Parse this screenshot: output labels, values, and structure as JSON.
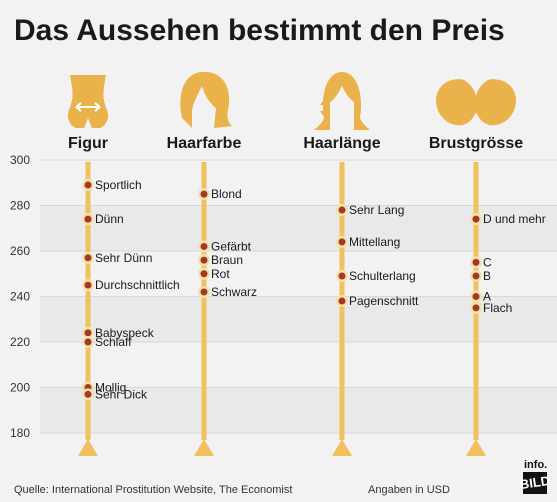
{
  "title": "Das Aussehen bestimmt den Preis",
  "footer": {
    "source": "Quelle: International Prostitution Website, The Economist",
    "unit_note": "Angaben in USD",
    "logo_info": "info.",
    "logo_bild": "BILD"
  },
  "colors": {
    "axis_line": "#f1c15c",
    "marker_fill": "#a23a22",
    "marker_halo": "#f5dfb0",
    "icon": "#e9b24a",
    "band": "#e9e9e9",
    "background": "#f2f2f2"
  },
  "chart_data": {
    "type": "scatter",
    "title": "Das Aussehen bestimmt den Preis",
    "ylim": [
      180,
      300
    ],
    "yticks": [
      180,
      200,
      220,
      240,
      260,
      280,
      300
    ],
    "grid": true,
    "categories": [
      {
        "name": "Figur",
        "icon": "body-icon",
        "points": [
          {
            "label": "Sportlich",
            "value": 289
          },
          {
            "label": "Dünn",
            "value": 274
          },
          {
            "label": "Sehr Dünn",
            "value": 257
          },
          {
            "label": "Durchschnittlich",
            "value": 245
          },
          {
            "label": "Babyspeck",
            "value": 224
          },
          {
            "label": "Schlaff",
            "value": 220
          },
          {
            "label": "Mollig",
            "value": 200
          },
          {
            "label": "Sehr Dick",
            "value": 197
          }
        ]
      },
      {
        "name": "Haarfarbe",
        "icon": "hair-color-icon",
        "points": [
          {
            "label": "Blond",
            "value": 285
          },
          {
            "label": "Gefärbt",
            "value": 262
          },
          {
            "label": "Braun",
            "value": 256
          },
          {
            "label": "Rot",
            "value": 250
          },
          {
            "label": "Schwarz",
            "value": 242
          }
        ]
      },
      {
        "name": "Haarlänge",
        "icon": "hair-length-icon",
        "points": [
          {
            "label": "Sehr Lang",
            "value": 278
          },
          {
            "label": "Mittellang",
            "value": 264
          },
          {
            "label": "Schulterlang",
            "value": 249
          },
          {
            "label": "Pagenschnitt",
            "value": 238
          }
        ]
      },
      {
        "name": "Brustgrösse",
        "icon": "bust-icon",
        "points": [
          {
            "label": "D und mehr",
            "value": 274
          },
          {
            "label": "C",
            "value": 255
          },
          {
            "label": "B",
            "value": 249
          },
          {
            "label": "A",
            "value": 240
          },
          {
            "label": "Flach",
            "value": 235
          }
        ]
      }
    ]
  }
}
